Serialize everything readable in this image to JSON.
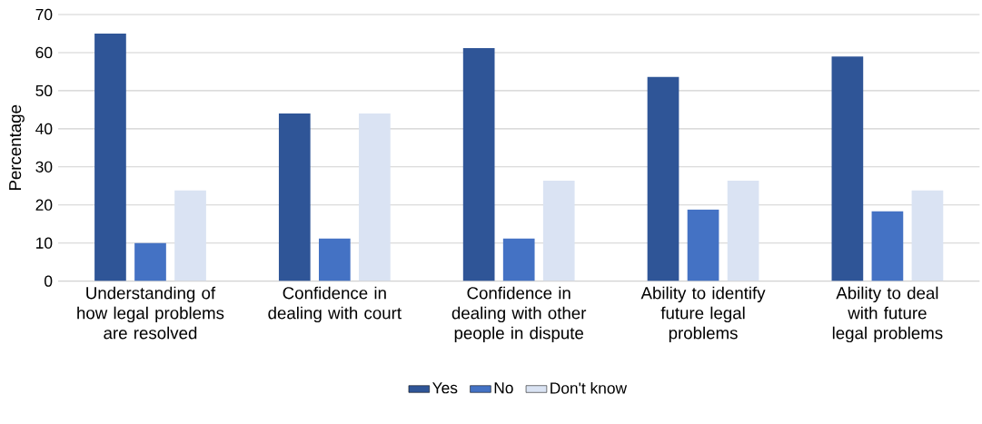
{
  "chart_data": {
    "type": "bar",
    "ylabel": "Percentage",
    "categories": [
      "Understanding of how legal problems are resolved",
      "Confidence in dealing with court",
      "Confidence in dealing with other people in dispute",
      "Ability to identify future legal problems",
      "Ability to deal with future legal problems"
    ],
    "series": [
      {
        "name": "Yes",
        "color": "#2f5597",
        "values": [
          65.0,
          44.0,
          61.2,
          53.6,
          59.0
        ]
      },
      {
        "name": "No",
        "color": "#4472c4",
        "values": [
          10.0,
          11.2,
          11.2,
          18.8,
          18.3
        ]
      },
      {
        "name": "Don't know",
        "color": "#dae3f3",
        "values": [
          23.8,
          44.0,
          26.4,
          26.4,
          23.8
        ]
      }
    ],
    "ylim": [
      0,
      70
    ],
    "yticks": [
      0,
      10,
      20,
      30,
      40,
      50,
      60,
      70
    ],
    "grid": "y",
    "legend": "bottom"
  }
}
